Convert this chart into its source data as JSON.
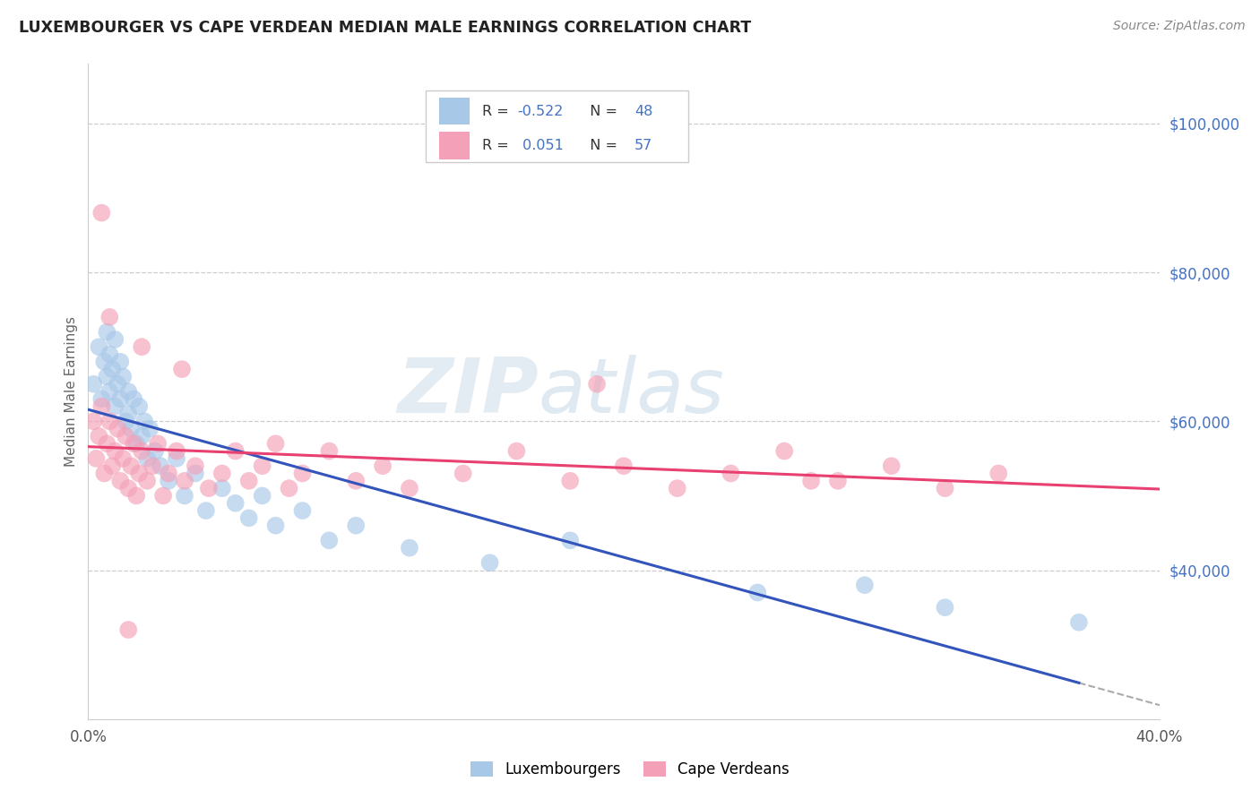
{
  "title": "LUXEMBOURGER VS CAPE VERDEAN MEDIAN MALE EARNINGS CORRELATION CHART",
  "source": "Source: ZipAtlas.com",
  "ylabel": "Median Male Earnings",
  "xlim": [
    0.0,
    0.4
  ],
  "ylim": [
    20000,
    108000
  ],
  "x_ticks": [
    0.0,
    0.1,
    0.2,
    0.3,
    0.4
  ],
  "x_tick_labels": [
    "0.0%",
    "",
    "",
    "",
    "40.0%"
  ],
  "y_ticks": [
    40000,
    60000,
    80000,
    100000
  ],
  "y_tick_labels": [
    "$40,000",
    "$60,000",
    "$80,000",
    "$100,000"
  ],
  "watermark_zip": "ZIP",
  "watermark_atlas": "atlas",
  "color_blue": "#a8c8e8",
  "color_pink": "#f4a0b8",
  "color_blue_line": "#3355bb",
  "color_pink_line": "#e84070",
  "color_blue_text": "#4472c4",
  "color_grid": "#cccccc",
  "lux_n": 48,
  "cv_n": 57,
  "bottom_labels": [
    "Luxembourgers",
    "Cape Verdeans"
  ],
  "lux_x": [
    0.002,
    0.004,
    0.005,
    0.006,
    0.007,
    0.007,
    0.008,
    0.008,
    0.009,
    0.01,
    0.01,
    0.011,
    0.012,
    0.012,
    0.013,
    0.014,
    0.015,
    0.015,
    0.016,
    0.017,
    0.018,
    0.019,
    0.02,
    0.021,
    0.022,
    0.023,
    0.025,
    0.027,
    0.03,
    0.033,
    0.036,
    0.04,
    0.044,
    0.05,
    0.055,
    0.06,
    0.065,
    0.07,
    0.08,
    0.09,
    0.1,
    0.12,
    0.15,
    0.18,
    0.25,
    0.29,
    0.32,
    0.37
  ],
  "lux_y": [
    65000,
    70000,
    63000,
    68000,
    72000,
    66000,
    64000,
    69000,
    67000,
    71000,
    62000,
    65000,
    68000,
    63000,
    66000,
    60000,
    64000,
    61000,
    59000,
    63000,
    57000,
    62000,
    58000,
    60000,
    55000,
    59000,
    56000,
    54000,
    52000,
    55000,
    50000,
    53000,
    48000,
    51000,
    49000,
    47000,
    50000,
    46000,
    48000,
    44000,
    46000,
    43000,
    41000,
    44000,
    37000,
    38000,
    35000,
    33000
  ],
  "cv_x": [
    0.002,
    0.003,
    0.004,
    0.005,
    0.006,
    0.007,
    0.008,
    0.009,
    0.01,
    0.011,
    0.012,
    0.013,
    0.014,
    0.015,
    0.016,
    0.017,
    0.018,
    0.019,
    0.02,
    0.022,
    0.024,
    0.026,
    0.028,
    0.03,
    0.033,
    0.036,
    0.04,
    0.045,
    0.05,
    0.055,
    0.06,
    0.065,
    0.07,
    0.075,
    0.08,
    0.09,
    0.1,
    0.11,
    0.12,
    0.14,
    0.16,
    0.18,
    0.2,
    0.22,
    0.24,
    0.26,
    0.28,
    0.3,
    0.32,
    0.34,
    0.005,
    0.008,
    0.02,
    0.035,
    0.19,
    0.27,
    0.015
  ],
  "cv_y": [
    60000,
    55000,
    58000,
    62000,
    53000,
    57000,
    60000,
    54000,
    56000,
    59000,
    52000,
    55000,
    58000,
    51000,
    54000,
    57000,
    50000,
    53000,
    56000,
    52000,
    54000,
    57000,
    50000,
    53000,
    56000,
    52000,
    54000,
    51000,
    53000,
    56000,
    52000,
    54000,
    57000,
    51000,
    53000,
    56000,
    52000,
    54000,
    51000,
    53000,
    56000,
    52000,
    54000,
    51000,
    53000,
    56000,
    52000,
    54000,
    51000,
    53000,
    88000,
    74000,
    70000,
    67000,
    65000,
    52000,
    32000
  ]
}
